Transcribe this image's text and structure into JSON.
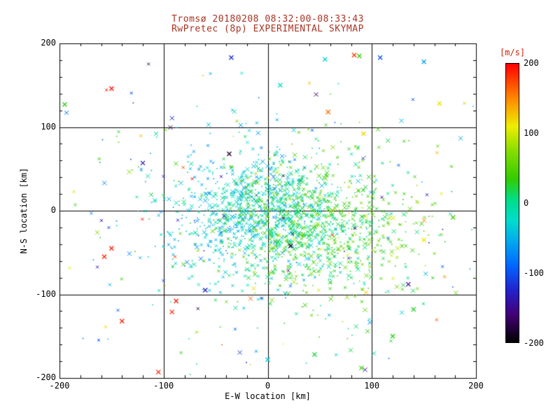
{
  "window": {
    "background": "#ffffff"
  },
  "title": {
    "line1": "Tromsø 20180208 08:32:00-08:33:43",
    "line2": "RwPretec (8p) EXPERIMENTAL SKYMAP",
    "color": "#aa3322"
  },
  "axes": {
    "xlabel": "E-W location [km]",
    "ylabel": "N-S location [km]",
    "xlim": [
      -200,
      200
    ],
    "ylim": [
      -200,
      200
    ],
    "xticks": [
      -200,
      -100,
      0,
      100,
      200
    ],
    "yticks": [
      -200,
      -100,
      0,
      100,
      200
    ],
    "grid": true
  },
  "colorbar": {
    "label": "[m/s]",
    "label_color": "#cc2200",
    "min": -200,
    "max": 200,
    "ticks": [
      200,
      100,
      0,
      -100,
      -200
    ]
  },
  "chart_data": {
    "type": "scatter",
    "title": "Tromsø 20180208 08:32:00-08:33:43 / RwPretec (8p) EXPERIMENTAL SKYMAP",
    "xlabel": "E-W location [km]",
    "ylabel": "N-S location [km]",
    "xlim": [
      -200,
      200
    ],
    "ylim": [
      -200,
      200
    ],
    "grid": true,
    "legend": "colorbar [m/s]",
    "marker": "x",
    "value_label": "[m/s]",
    "value_range": [
      -200,
      200
    ],
    "n_points_estimate": 2000,
    "seed": 20180208,
    "clusters": [
      {
        "name": "core-west-cyan",
        "count": 650,
        "cx": -15,
        "cy": 0,
        "sx": 42,
        "sy": 32,
        "v_mean": -35,
        "v_sd": 22,
        "v_slope_x": 0.15
      },
      {
        "name": "core-east-green",
        "count": 750,
        "cx": 45,
        "cy": -15,
        "sx": 45,
        "sy": 38,
        "v_mean": 30,
        "v_sd": 24,
        "v_slope_x": 0.1
      },
      {
        "name": "mid-spread",
        "count": 380,
        "cx": 15,
        "cy": -25,
        "sx": 75,
        "sy": 55,
        "v_mean": 0,
        "v_sd": 45,
        "v_slope_x": 0.2
      },
      {
        "name": "outer-halo",
        "count": 230,
        "cx": 10,
        "cy": -10,
        "sx": 110,
        "sy": 85,
        "v_mean": -5,
        "v_sd": 90,
        "v_slope_x": 0
      }
    ],
    "outliers": [
      [
        -150,
        146,
        195
      ],
      [
        -140,
        -132,
        190
      ],
      [
        -88,
        -108,
        190
      ],
      [
        -92,
        -121,
        185
      ],
      [
        -150,
        -45,
        190
      ],
      [
        -157,
        -55,
        185
      ],
      [
        -105,
        -193,
        190
      ],
      [
        58,
        118,
        160
      ],
      [
        -35,
        183,
        -120
      ],
      [
        -120,
        57,
        -135
      ],
      [
        -60,
        -95,
        -130
      ],
      [
        135,
        -88,
        -150
      ],
      [
        -37,
        68,
        -185
      ],
      [
        22,
        -42,
        -180
      ],
      [
        165,
        128,
        115
      ],
      [
        150,
        -35,
        105
      ],
      [
        92,
        92,
        120
      ],
      [
        90,
        -188,
        40
      ],
      [
        120,
        -150,
        30
      ],
      [
        140,
        -118,
        25
      ],
      [
        -195,
        127,
        30
      ],
      [
        178,
        -8,
        45
      ],
      [
        55,
        181,
        -30
      ],
      [
        88,
        185,
        35
      ],
      [
        108,
        183,
        -100
      ],
      [
        12,
        150,
        -20
      ],
      [
        0,
        -178,
        -40
      ],
      [
        45,
        -172,
        20
      ],
      [
        83,
        186,
        180
      ],
      [
        150,
        178,
        -60
      ]
    ],
    "colormap": [
      {
        "v": -200,
        "c": "#000000"
      },
      {
        "v": -160,
        "c": "#440077"
      },
      {
        "v": -125,
        "c": "#2222cc"
      },
      {
        "v": -90,
        "c": "#0066ff"
      },
      {
        "v": -55,
        "c": "#00aaee"
      },
      {
        "v": -25,
        "c": "#00ddcc"
      },
      {
        "v": 5,
        "c": "#00dd88"
      },
      {
        "v": 35,
        "c": "#33cc00"
      },
      {
        "v": 75,
        "c": "#88dd00"
      },
      {
        "v": 110,
        "c": "#eeee00"
      },
      {
        "v": 150,
        "c": "#ff8800"
      },
      {
        "v": 200,
        "c": "#ff0000"
      }
    ]
  }
}
